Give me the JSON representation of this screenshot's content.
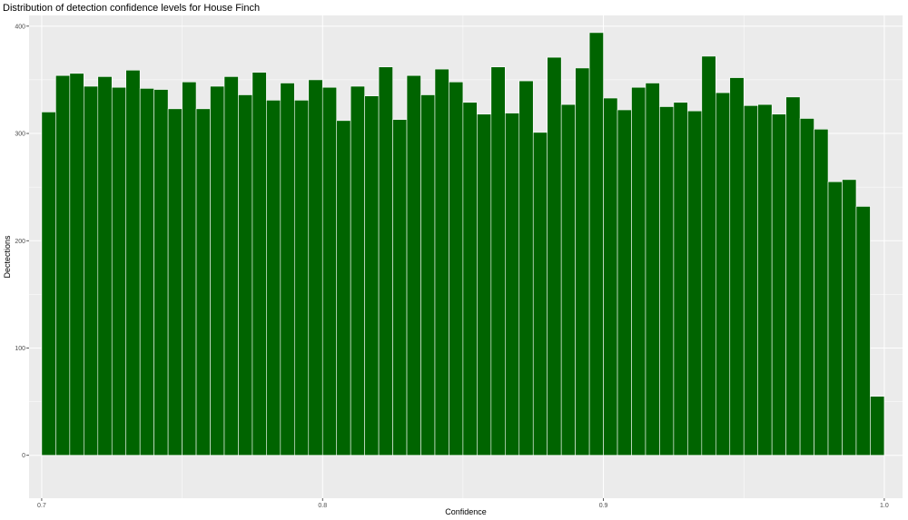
{
  "chart_data": {
    "type": "bar",
    "title": "Distribution of detection confidence levels for House Finch",
    "xlabel": "Confidence",
    "ylabel": "Dectections",
    "xlim": [
      0.6955,
      1.0065
    ],
    "ylim": [
      -40,
      410
    ],
    "x_ticks": [
      0.7,
      0.8,
      0.9,
      1.0
    ],
    "x_tick_labels": [
      "0.7",
      "0.8",
      "0.9",
      "1.0"
    ],
    "y_ticks": [
      0,
      100,
      200,
      300,
      400
    ],
    "y_tick_labels": [
      "0",
      "100",
      "200",
      "300",
      "400"
    ],
    "bar_width": 0.005,
    "grid": true,
    "bar_color": "#006400",
    "panel_color": "#EBEBEB",
    "x": [
      0.7025,
      0.7075,
      0.7125,
      0.7175,
      0.7225,
      0.7275,
      0.7325,
      0.7375,
      0.7425,
      0.7475,
      0.7525,
      0.7575,
      0.7625,
      0.7675,
      0.7725,
      0.7775,
      0.7825,
      0.7875,
      0.7925,
      0.7975,
      0.8025,
      0.8075,
      0.8125,
      0.8175,
      0.8225,
      0.8275,
      0.8325,
      0.8375,
      0.8425,
      0.8475,
      0.8525,
      0.8575,
      0.8625,
      0.8675,
      0.8725,
      0.8775,
      0.8825,
      0.8875,
      0.8925,
      0.8975,
      0.9025,
      0.9075,
      0.9125,
      0.9175,
      0.9225,
      0.9275,
      0.9325,
      0.9375,
      0.9425,
      0.9475,
      0.9525,
      0.9575,
      0.9625,
      0.9675,
      0.9725,
      0.9775,
      0.9825,
      0.9875,
      0.9925,
      0.9975
    ],
    "values": [
      320,
      354,
      356,
      344,
      353,
      343,
      359,
      342,
      341,
      323,
      348,
      323,
      344,
      353,
      336,
      357,
      331,
      347,
      331,
      350,
      343,
      312,
      344,
      335,
      362,
      313,
      354,
      336,
      360,
      348,
      329,
      318,
      362,
      319,
      349,
      301,
      371,
      327,
      361,
      394,
      333,
      322,
      343,
      347,
      325,
      329,
      321,
      372,
      338,
      352,
      326,
      327,
      318,
      334,
      314,
      304,
      255,
      257,
      232,
      55
    ]
  }
}
